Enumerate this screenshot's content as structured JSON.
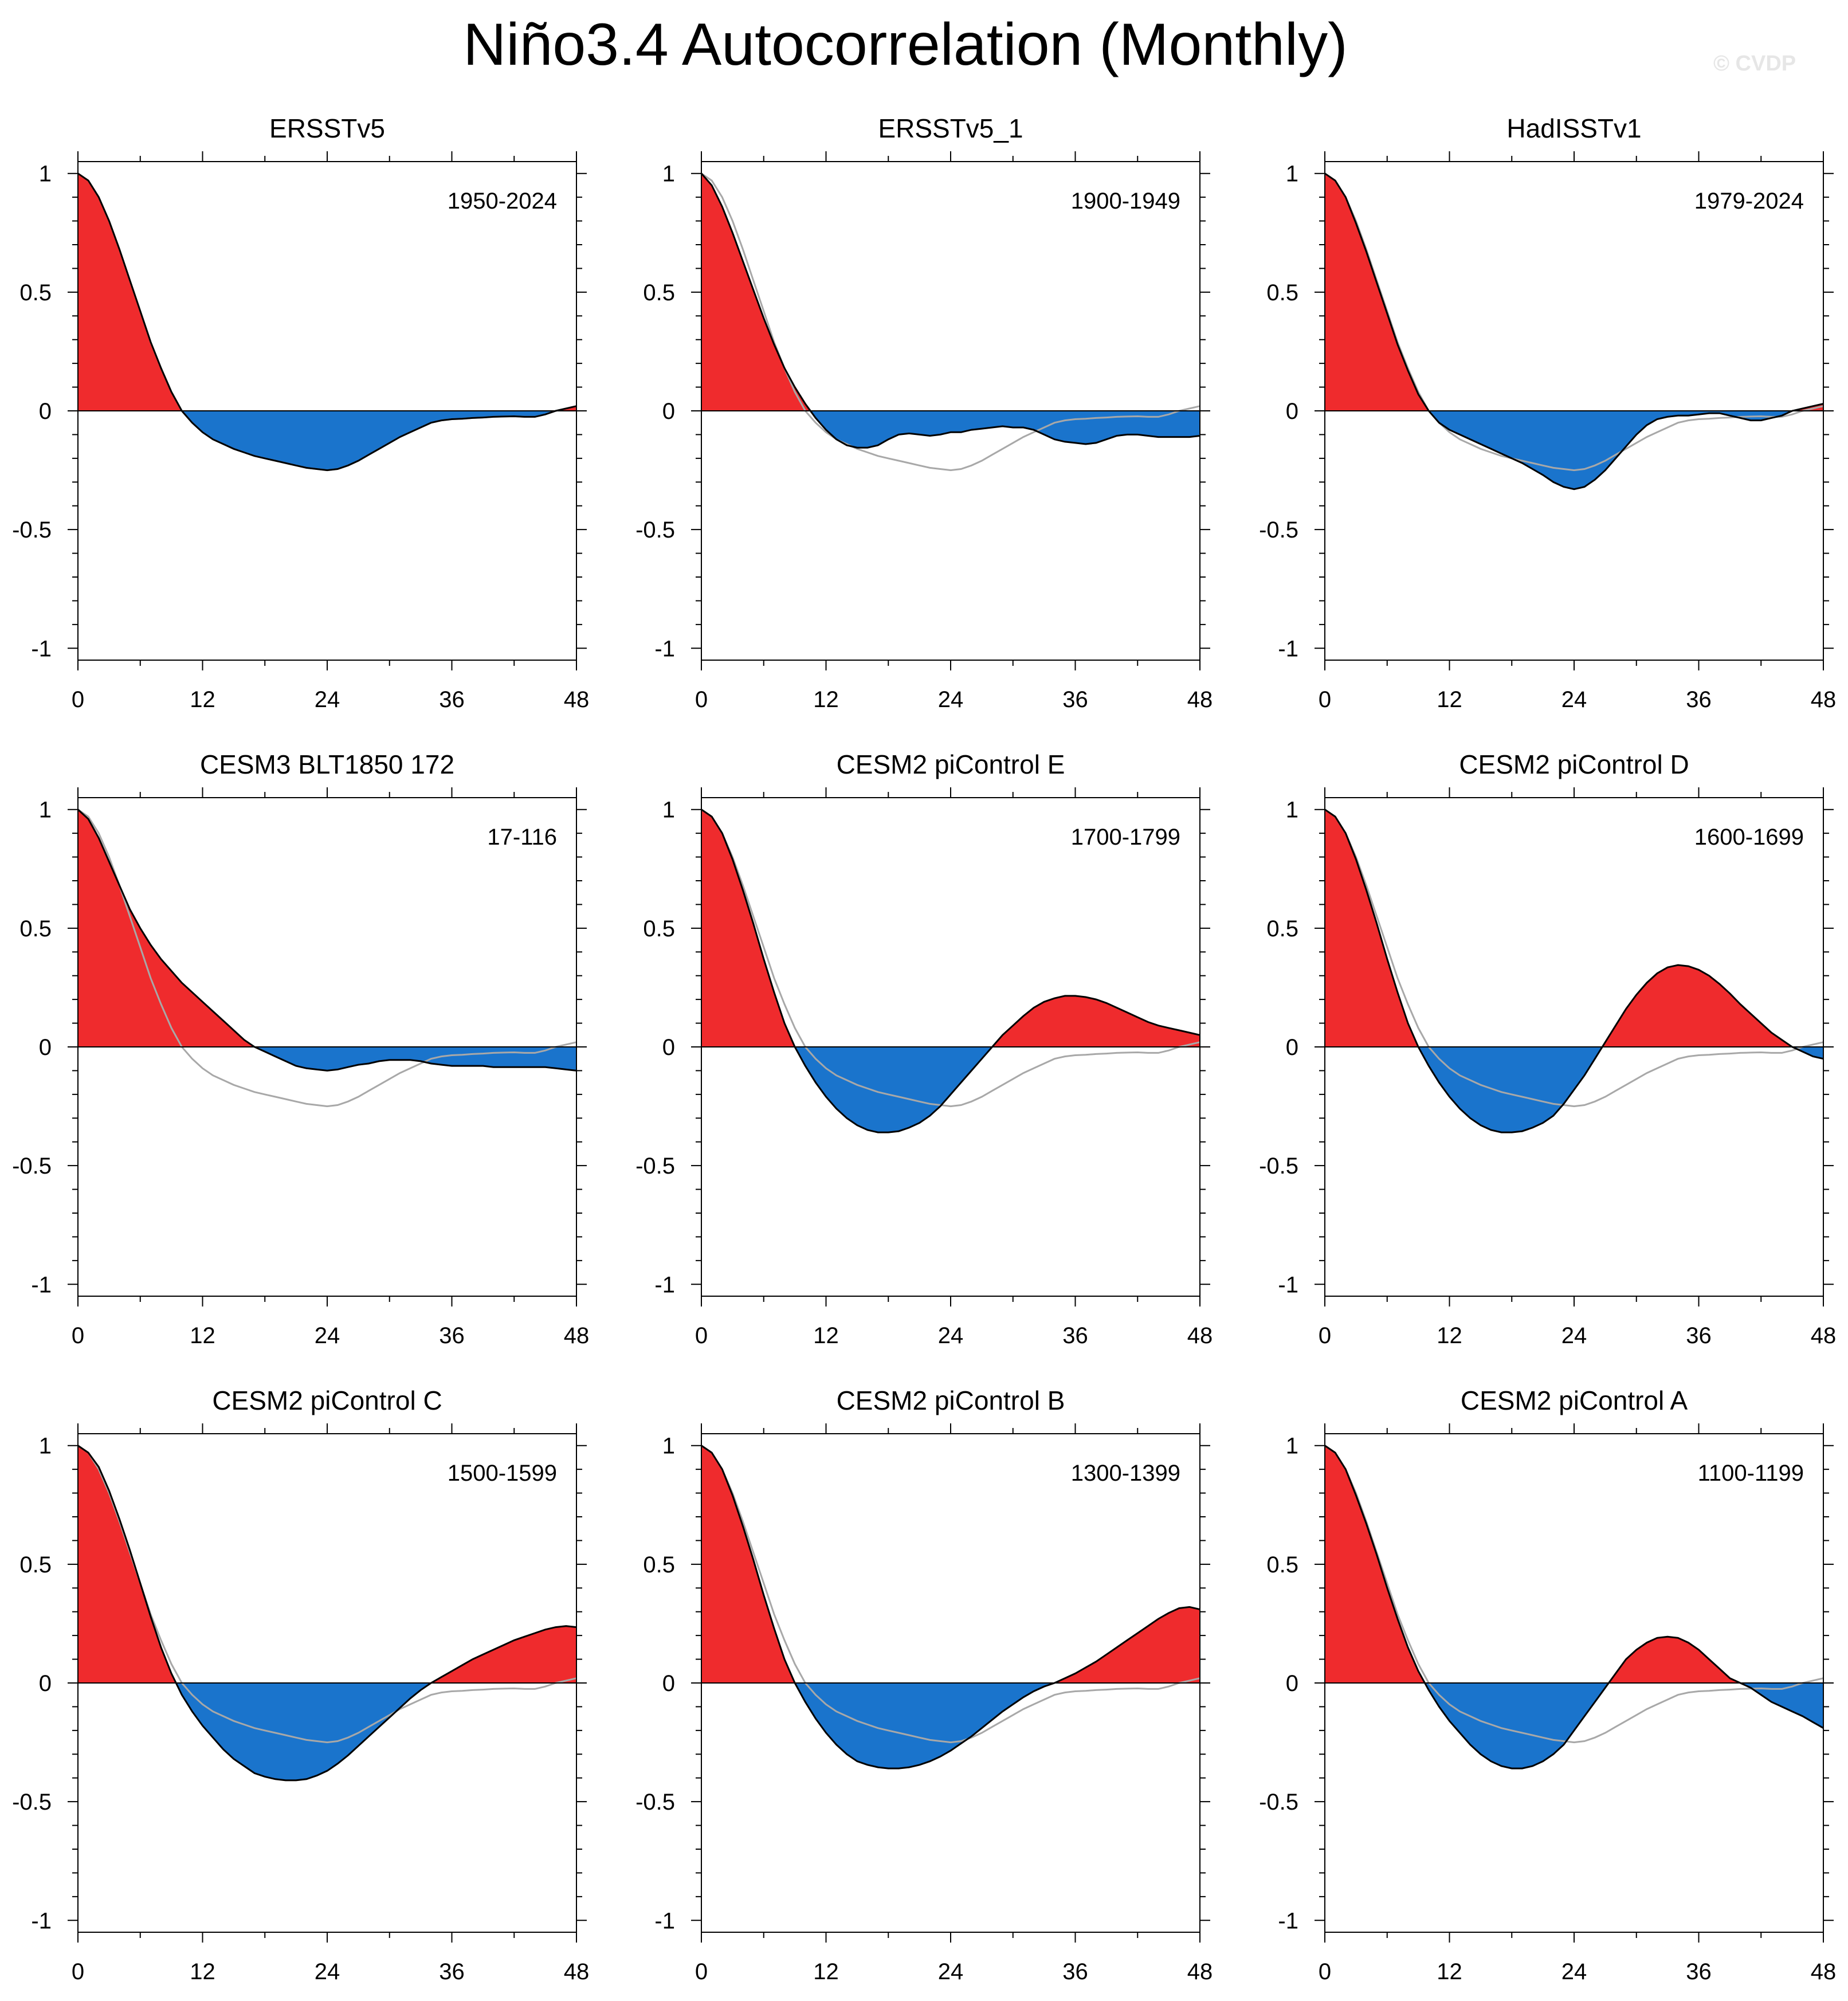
{
  "title": "Niño3.4 Autocorrelation (Monthly)",
  "watermark": "© CVDP",
  "colors": {
    "positive_fill": "#ef2b2d",
    "negative_fill": "#1a74cc",
    "line": "#000000",
    "reference_line": "#a8a8a8"
  },
  "chart_data": [
    {
      "type": "area",
      "title": "ERSSTv5",
      "period": "1950-2024",
      "x": [
        0,
        1,
        2,
        3,
        4,
        5,
        6,
        7,
        8,
        9,
        10,
        11,
        12,
        13,
        14,
        15,
        16,
        17,
        18,
        19,
        20,
        21,
        22,
        23,
        24,
        25,
        26,
        27,
        28,
        29,
        30,
        31,
        32,
        33,
        34,
        35,
        36,
        37,
        38,
        39,
        40,
        41,
        42,
        43,
        44,
        45,
        46,
        47,
        48
      ],
      "xticks": [
        0,
        12,
        24,
        36,
        48
      ],
      "yticks": [
        -1,
        -0.5,
        0,
        0.5,
        1
      ],
      "xlim": [
        0,
        48
      ],
      "ylim": [
        -1.05,
        1.05
      ],
      "values": [
        1.0,
        0.97,
        0.9,
        0.8,
        0.68,
        0.55,
        0.42,
        0.29,
        0.18,
        0.08,
        0.0,
        -0.05,
        -0.09,
        -0.12,
        -0.14,
        -0.16,
        -0.175,
        -0.19,
        -0.2,
        -0.21,
        -0.22,
        -0.23,
        -0.24,
        -0.245,
        -0.25,
        -0.245,
        -0.23,
        -0.21,
        -0.185,
        -0.16,
        -0.135,
        -0.11,
        -0.09,
        -0.07,
        -0.05,
        -0.04,
        -0.035,
        -0.033,
        -0.03,
        -0.028,
        -0.025,
        -0.024,
        -0.023,
        -0.025,
        -0.025,
        -0.015,
        0.0,
        0.01,
        0.02
      ]
    },
    {
      "type": "area",
      "title": "ERSSTv5_1",
      "period": "1900-1949",
      "x": [
        0,
        1,
        2,
        3,
        4,
        5,
        6,
        7,
        8,
        9,
        10,
        11,
        12,
        13,
        14,
        15,
        16,
        17,
        18,
        19,
        20,
        21,
        22,
        23,
        24,
        25,
        26,
        27,
        28,
        29,
        30,
        31,
        32,
        33,
        34,
        35,
        36,
        37,
        38,
        39,
        40,
        41,
        42,
        43,
        44,
        45,
        46,
        47,
        48
      ],
      "xticks": [
        0,
        12,
        24,
        36,
        48
      ],
      "yticks": [
        -1,
        -0.5,
        0,
        0.5,
        1
      ],
      "xlim": [
        0,
        48
      ],
      "ylim": [
        -1.05,
        1.05
      ],
      "values": [
        1.0,
        0.95,
        0.86,
        0.75,
        0.63,
        0.51,
        0.39,
        0.28,
        0.18,
        0.1,
        0.03,
        -0.03,
        -0.08,
        -0.12,
        -0.145,
        -0.155,
        -0.155,
        -0.145,
        -0.12,
        -0.1,
        -0.095,
        -0.1,
        -0.105,
        -0.1,
        -0.09,
        -0.09,
        -0.08,
        -0.075,
        -0.07,
        -0.065,
        -0.07,
        -0.07,
        -0.08,
        -0.1,
        -0.12,
        -0.13,
        -0.135,
        -0.14,
        -0.135,
        -0.12,
        -0.105,
        -0.1,
        -0.1,
        -0.105,
        -0.11,
        -0.11,
        -0.11,
        -0.11,
        -0.105
      ]
    },
    {
      "type": "area",
      "title": "HadISSTv1",
      "period": "1979-2024",
      "x": [
        0,
        1,
        2,
        3,
        4,
        5,
        6,
        7,
        8,
        9,
        10,
        11,
        12,
        13,
        14,
        15,
        16,
        17,
        18,
        19,
        20,
        21,
        22,
        23,
        24,
        25,
        26,
        27,
        28,
        29,
        30,
        31,
        32,
        33,
        34,
        35,
        36,
        37,
        38,
        39,
        40,
        41,
        42,
        43,
        44,
        45,
        46,
        47,
        48
      ],
      "xticks": [
        0,
        12,
        24,
        36,
        48
      ],
      "yticks": [
        -1,
        -0.5,
        0,
        0.5,
        1
      ],
      "xlim": [
        0,
        48
      ],
      "ylim": [
        -1.05,
        1.05
      ],
      "values": [
        1.0,
        0.97,
        0.9,
        0.79,
        0.67,
        0.54,
        0.41,
        0.28,
        0.17,
        0.07,
        0.0,
        -0.05,
        -0.08,
        -0.1,
        -0.12,
        -0.14,
        -0.16,
        -0.18,
        -0.2,
        -0.22,
        -0.245,
        -0.27,
        -0.3,
        -0.32,
        -0.33,
        -0.32,
        -0.29,
        -0.25,
        -0.2,
        -0.15,
        -0.1,
        -0.06,
        -0.035,
        -0.025,
        -0.02,
        -0.02,
        -0.015,
        -0.01,
        -0.01,
        -0.02,
        -0.03,
        -0.04,
        -0.04,
        -0.03,
        -0.02,
        0.0,
        0.01,
        0.02,
        0.03
      ]
    },
    {
      "type": "area",
      "title": "CESM3 BLT1850 172",
      "period": "17-116",
      "x": [
        0,
        1,
        2,
        3,
        4,
        5,
        6,
        7,
        8,
        9,
        10,
        11,
        12,
        13,
        14,
        15,
        16,
        17,
        18,
        19,
        20,
        21,
        22,
        23,
        24,
        25,
        26,
        27,
        28,
        29,
        30,
        31,
        32,
        33,
        34,
        35,
        36,
        37,
        38,
        39,
        40,
        41,
        42,
        43,
        44,
        45,
        46,
        47,
        48
      ],
      "xticks": [
        0,
        12,
        24,
        36,
        48
      ],
      "yticks": [
        -1,
        -0.5,
        0,
        0.5,
        1
      ],
      "xlim": [
        0,
        48
      ],
      "ylim": [
        -1.05,
        1.05
      ],
      "values": [
        1.0,
        0.96,
        0.88,
        0.78,
        0.68,
        0.58,
        0.5,
        0.43,
        0.37,
        0.32,
        0.27,
        0.23,
        0.19,
        0.15,
        0.11,
        0.07,
        0.03,
        0.0,
        -0.02,
        -0.04,
        -0.06,
        -0.08,
        -0.09,
        -0.095,
        -0.1,
        -0.095,
        -0.085,
        -0.075,
        -0.07,
        -0.06,
        -0.055,
        -0.055,
        -0.055,
        -0.06,
        -0.07,
        -0.075,
        -0.08,
        -0.08,
        -0.08,
        -0.08,
        -0.085,
        -0.085,
        -0.085,
        -0.085,
        -0.085,
        -0.085,
        -0.09,
        -0.095,
        -0.1
      ]
    },
    {
      "type": "area",
      "title": "CESM2 piControl E",
      "period": "1700-1799",
      "x": [
        0,
        1,
        2,
        3,
        4,
        5,
        6,
        7,
        8,
        9,
        10,
        11,
        12,
        13,
        14,
        15,
        16,
        17,
        18,
        19,
        20,
        21,
        22,
        23,
        24,
        25,
        26,
        27,
        28,
        29,
        30,
        31,
        32,
        33,
        34,
        35,
        36,
        37,
        38,
        39,
        40,
        41,
        42,
        43,
        44,
        45,
        46,
        47,
        48
      ],
      "xticks": [
        0,
        12,
        24,
        36,
        48
      ],
      "yticks": [
        -1,
        -0.5,
        0,
        0.5,
        1
      ],
      "xlim": [
        0,
        48
      ],
      "ylim": [
        -1.05,
        1.05
      ],
      "values": [
        1.0,
        0.97,
        0.9,
        0.79,
        0.66,
        0.52,
        0.37,
        0.23,
        0.1,
        0.0,
        -0.08,
        -0.15,
        -0.21,
        -0.26,
        -0.3,
        -0.33,
        -0.35,
        -0.36,
        -0.36,
        -0.355,
        -0.34,
        -0.32,
        -0.29,
        -0.25,
        -0.2,
        -0.15,
        -0.1,
        -0.05,
        0.0,
        0.05,
        0.09,
        0.13,
        0.165,
        0.19,
        0.205,
        0.215,
        0.215,
        0.21,
        0.2,
        0.185,
        0.165,
        0.145,
        0.125,
        0.105,
        0.09,
        0.08,
        0.07,
        0.06,
        0.05
      ]
    },
    {
      "type": "area",
      "title": "CESM2 piControl D",
      "period": "1600-1699",
      "x": [
        0,
        1,
        2,
        3,
        4,
        5,
        6,
        7,
        8,
        9,
        10,
        11,
        12,
        13,
        14,
        15,
        16,
        17,
        18,
        19,
        20,
        21,
        22,
        23,
        24,
        25,
        26,
        27,
        28,
        29,
        30,
        31,
        32,
        33,
        34,
        35,
        36,
        37,
        38,
        39,
        40,
        41,
        42,
        43,
        44,
        45,
        46,
        47,
        48
      ],
      "xticks": [
        0,
        12,
        24,
        36,
        48
      ],
      "yticks": [
        -1,
        -0.5,
        0,
        0.5,
        1
      ],
      "xlim": [
        0,
        48
      ],
      "ylim": [
        -1.05,
        1.05
      ],
      "values": [
        1.0,
        0.97,
        0.9,
        0.79,
        0.66,
        0.52,
        0.37,
        0.23,
        0.1,
        0.0,
        -0.08,
        -0.15,
        -0.21,
        -0.26,
        -0.3,
        -0.33,
        -0.35,
        -0.36,
        -0.36,
        -0.355,
        -0.34,
        -0.32,
        -0.29,
        -0.24,
        -0.18,
        -0.12,
        -0.05,
        0.02,
        0.09,
        0.16,
        0.22,
        0.27,
        0.31,
        0.335,
        0.345,
        0.34,
        0.325,
        0.3,
        0.265,
        0.225,
        0.18,
        0.14,
        0.1,
        0.06,
        0.03,
        0.0,
        -0.02,
        -0.04,
        -0.05
      ]
    },
    {
      "type": "area",
      "title": "CESM2 piControl C",
      "period": "1500-1599",
      "x": [
        0,
        1,
        2,
        3,
        4,
        5,
        6,
        7,
        8,
        9,
        10,
        11,
        12,
        13,
        14,
        15,
        16,
        17,
        18,
        19,
        20,
        21,
        22,
        23,
        24,
        25,
        26,
        27,
        28,
        29,
        30,
        31,
        32,
        33,
        34,
        35,
        36,
        37,
        38,
        39,
        40,
        41,
        42,
        43,
        44,
        45,
        46,
        47,
        48
      ],
      "xticks": [
        0,
        12,
        24,
        36,
        48
      ],
      "yticks": [
        -1,
        -0.5,
        0,
        0.5,
        1
      ],
      "xlim": [
        0,
        48
      ],
      "ylim": [
        -1.05,
        1.05
      ],
      "values": [
        1.0,
        0.97,
        0.91,
        0.81,
        0.69,
        0.56,
        0.42,
        0.28,
        0.15,
        0.04,
        -0.05,
        -0.12,
        -0.18,
        -0.23,
        -0.28,
        -0.32,
        -0.35,
        -0.38,
        -0.395,
        -0.405,
        -0.41,
        -0.41,
        -0.405,
        -0.39,
        -0.37,
        -0.34,
        -0.305,
        -0.265,
        -0.225,
        -0.185,
        -0.145,
        -0.105,
        -0.065,
        -0.03,
        0.0,
        0.025,
        0.05,
        0.075,
        0.1,
        0.12,
        0.14,
        0.16,
        0.18,
        0.195,
        0.21,
        0.225,
        0.235,
        0.24,
        0.235
      ]
    },
    {
      "type": "area",
      "title": "CESM2 piControl B",
      "period": "1300-1399",
      "x": [
        0,
        1,
        2,
        3,
        4,
        5,
        6,
        7,
        8,
        9,
        10,
        11,
        12,
        13,
        14,
        15,
        16,
        17,
        18,
        19,
        20,
        21,
        22,
        23,
        24,
        25,
        26,
        27,
        28,
        29,
        30,
        31,
        32,
        33,
        34,
        35,
        36,
        37,
        38,
        39,
        40,
        41,
        42,
        43,
        44,
        45,
        46,
        47,
        48
      ],
      "xticks": [
        0,
        12,
        24,
        36,
        48
      ],
      "yticks": [
        -1,
        -0.5,
        0,
        0.5,
        1
      ],
      "xlim": [
        0,
        48
      ],
      "ylim": [
        -1.05,
        1.05
      ],
      "values": [
        1.0,
        0.97,
        0.9,
        0.79,
        0.66,
        0.52,
        0.37,
        0.23,
        0.1,
        0.0,
        -0.08,
        -0.15,
        -0.21,
        -0.26,
        -0.3,
        -0.33,
        -0.345,
        -0.355,
        -0.36,
        -0.36,
        -0.355,
        -0.345,
        -0.33,
        -0.31,
        -0.285,
        -0.255,
        -0.225,
        -0.19,
        -0.155,
        -0.12,
        -0.09,
        -0.06,
        -0.035,
        -0.015,
        0.0,
        0.02,
        0.04,
        0.065,
        0.09,
        0.12,
        0.15,
        0.18,
        0.21,
        0.24,
        0.27,
        0.295,
        0.315,
        0.32,
        0.31
      ]
    },
    {
      "type": "area",
      "title": "CESM2 piControl A",
      "period": "1100-1199",
      "x": [
        0,
        1,
        2,
        3,
        4,
        5,
        6,
        7,
        8,
        9,
        10,
        11,
        12,
        13,
        14,
        15,
        16,
        17,
        18,
        19,
        20,
        21,
        22,
        23,
        24,
        25,
        26,
        27,
        28,
        29,
        30,
        31,
        32,
        33,
        34,
        35,
        36,
        37,
        38,
        39,
        40,
        41,
        42,
        43,
        44,
        45,
        46,
        47,
        48
      ],
      "xticks": [
        0,
        12,
        24,
        36,
        48
      ],
      "yticks": [
        -1,
        -0.5,
        0,
        0.5,
        1
      ],
      "xlim": [
        0,
        48
      ],
      "ylim": [
        -1.05,
        1.05
      ],
      "values": [
        1.0,
        0.97,
        0.9,
        0.79,
        0.67,
        0.54,
        0.4,
        0.27,
        0.15,
        0.05,
        -0.03,
        -0.1,
        -0.16,
        -0.21,
        -0.26,
        -0.3,
        -0.33,
        -0.35,
        -0.36,
        -0.36,
        -0.35,
        -0.33,
        -0.3,
        -0.26,
        -0.2,
        -0.14,
        -0.08,
        -0.02,
        0.04,
        0.1,
        0.14,
        0.17,
        0.19,
        0.195,
        0.19,
        0.17,
        0.14,
        0.1,
        0.06,
        0.02,
        0.0,
        -0.02,
        -0.05,
        -0.08,
        -0.1,
        -0.12,
        -0.14,
        -0.165,
        -0.19
      ]
    }
  ],
  "reference": {
    "name": "ERSSTv5",
    "values": [
      1.0,
      0.97,
      0.9,
      0.8,
      0.68,
      0.55,
      0.42,
      0.29,
      0.18,
      0.08,
      0.0,
      -0.05,
      -0.09,
      -0.12,
      -0.14,
      -0.16,
      -0.175,
      -0.19,
      -0.2,
      -0.21,
      -0.22,
      -0.23,
      -0.24,
      -0.245,
      -0.25,
      -0.245,
      -0.23,
      -0.21,
      -0.185,
      -0.16,
      -0.135,
      -0.11,
      -0.09,
      -0.07,
      -0.05,
      -0.04,
      -0.035,
      -0.033,
      -0.03,
      -0.028,
      -0.025,
      -0.024,
      -0.023,
      -0.025,
      -0.025,
      -0.015,
      0.0,
      0.01,
      0.02
    ]
  }
}
